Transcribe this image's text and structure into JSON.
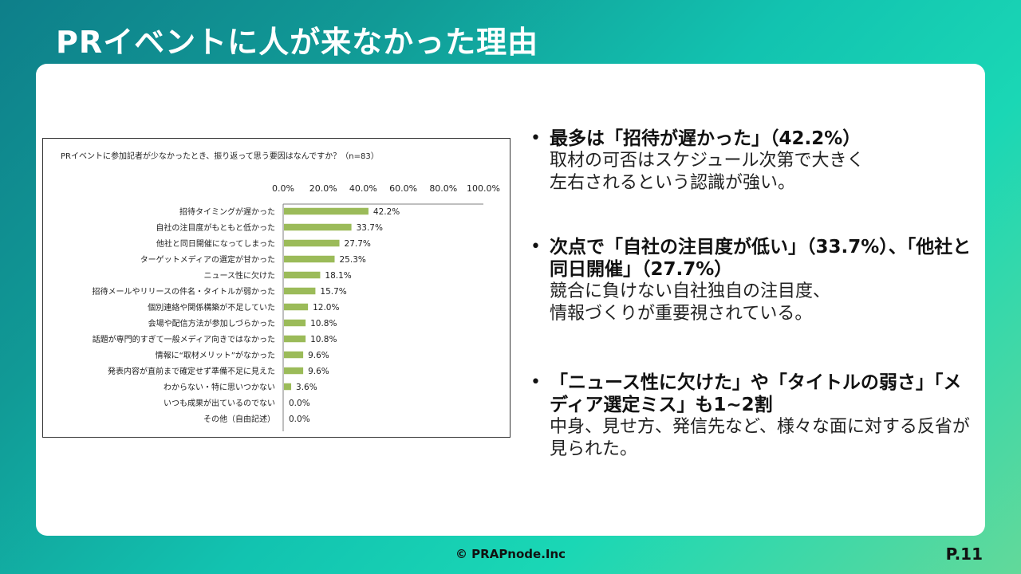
{
  "slide": {
    "title": "PRイベントに人が来なかった理由",
    "footer": "© PRAPnode.Inc",
    "page": "P.11"
  },
  "colors": {
    "bar": "#9bbb59",
    "accent_start": "#0e7f8a",
    "accent_end": "#62d99a"
  },
  "chart_data": {
    "type": "bar",
    "orientation": "horizontal",
    "title": "PRイベントに参加記者が少なかったとき、振り返って思う要因はなんですか？（n=83）",
    "categories": [
      "招待タイミングが遅かった",
      "自社の注目度がもともと低かった",
      "他社と同日開催になってしまった",
      "ターゲットメディアの選定が甘かった",
      "ニュース性に欠けた",
      "招待メールやリリースの件名・タイトルが弱かった",
      "個別連絡や関係構築が不足していた",
      "会場や配信方法が参加しづらかった",
      "話題が専門的すぎて一般メディア向きではなかった",
      "情報に“取材メリット”がなかった",
      "発表内容が直前まで確定せず準備不足に見えた",
      "わからない・特に思いつかない",
      "いつも成果が出ているのでない",
      "その他（自由記述）"
    ],
    "values": [
      42.2,
      33.7,
      27.7,
      25.3,
      18.1,
      15.7,
      12.0,
      10.8,
      10.8,
      9.6,
      9.6,
      3.6,
      0.0,
      0.0
    ],
    "value_labels": [
      "42.2%",
      "33.7%",
      "27.7%",
      "25.3%",
      "18.1%",
      "15.7%",
      "12.0%",
      "10.8%",
      "10.8%",
      "9.6%",
      "9.6%",
      "3.6%",
      "0.0%",
      "0.0%"
    ],
    "xlim": [
      0,
      100
    ],
    "ticks": [
      "0.0%",
      "20.0%",
      "40.0%",
      "60.0%",
      "80.0%",
      "100.0%"
    ],
    "grid": false,
    "legend": "none"
  },
  "bullets": [
    {
      "head": "最多は「招待が遅かった」（42.2%）",
      "body": [
        "取材の可否はスケジュール次第で大きく",
        "左右されるという認識が強い。"
      ]
    },
    {
      "head": "次点で「自社の注目度が低い」（33.7%）、「他社と同日開催」（27.7%）",
      "body": [
        "競合に負けない自社独自の注目度、",
        "情報づくりが重要視されている。"
      ]
    },
    {
      "head": "「ニュース性に欠けた」や「タイトルの弱さ」「メディア選定ミス」も1~2割",
      "body": [
        "中身、見せ方、発信先など、様々な面に対する反省が見られた。"
      ]
    }
  ]
}
